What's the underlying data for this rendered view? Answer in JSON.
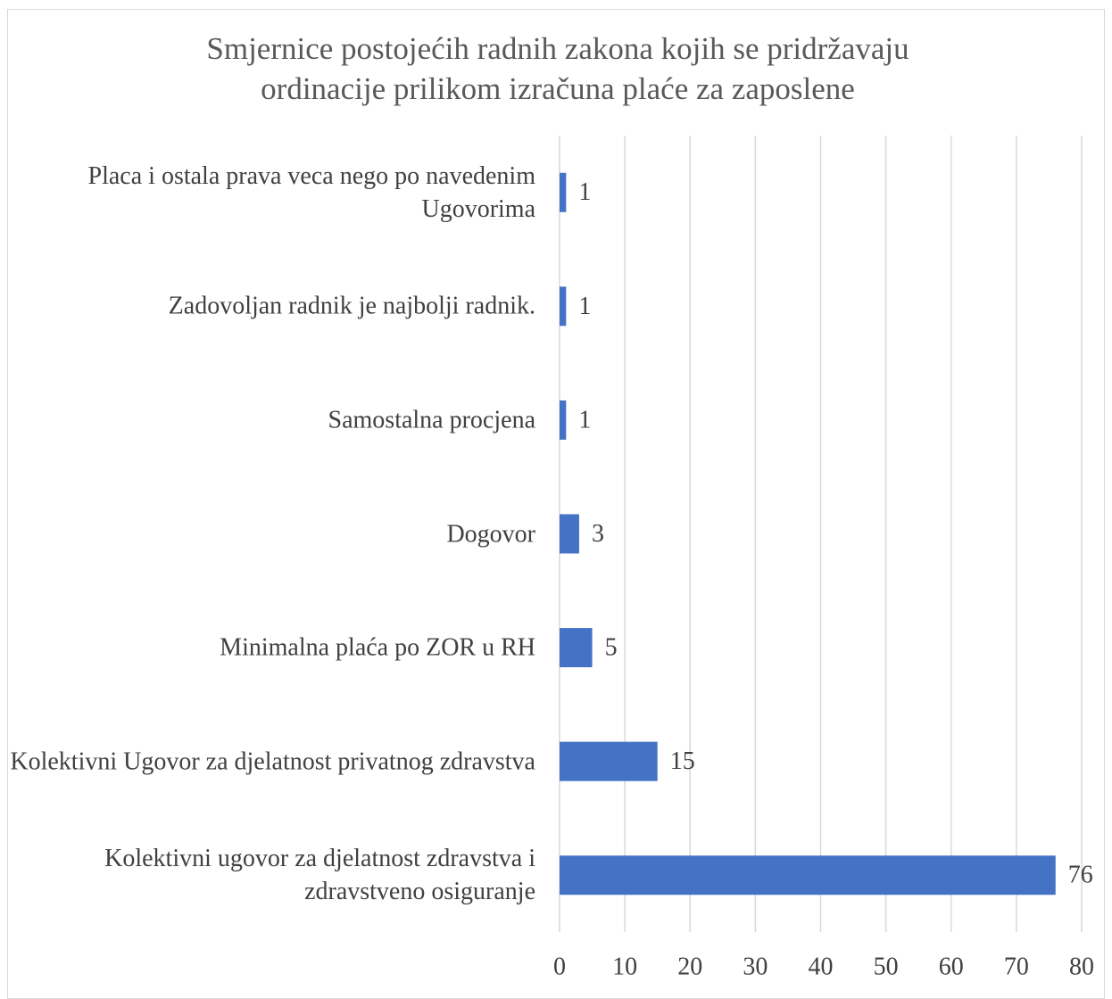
{
  "chart_data": {
    "type": "bar",
    "orientation": "horizontal",
    "title": "Smjernice postojećih radnih zakona kojih se pridržavaju ordinacije prilikom izračuna plaće za zaposlene",
    "categories": [
      "Placa i ostala prava veca nego po navedenim Ugovorima",
      "Zadovoljan radnik je najbolji radnik.",
      "Samostalna procjena",
      "Dogovor",
      "Minimalna plaća po ZOR u RH",
      "Kolektivni Ugovor za djelatnost privatnog zdravstva",
      "Kolektivni ugovor za  djelatnost zdravstva i zdravstveno osiguranje"
    ],
    "values": [
      1,
      1,
      1,
      3,
      5,
      15,
      76
    ],
    "color": "#4472c4",
    "xlim": [
      0,
      80
    ],
    "xticks": [
      0,
      10,
      20,
      30,
      40,
      50,
      60,
      70,
      80
    ],
    "grid": true
  }
}
